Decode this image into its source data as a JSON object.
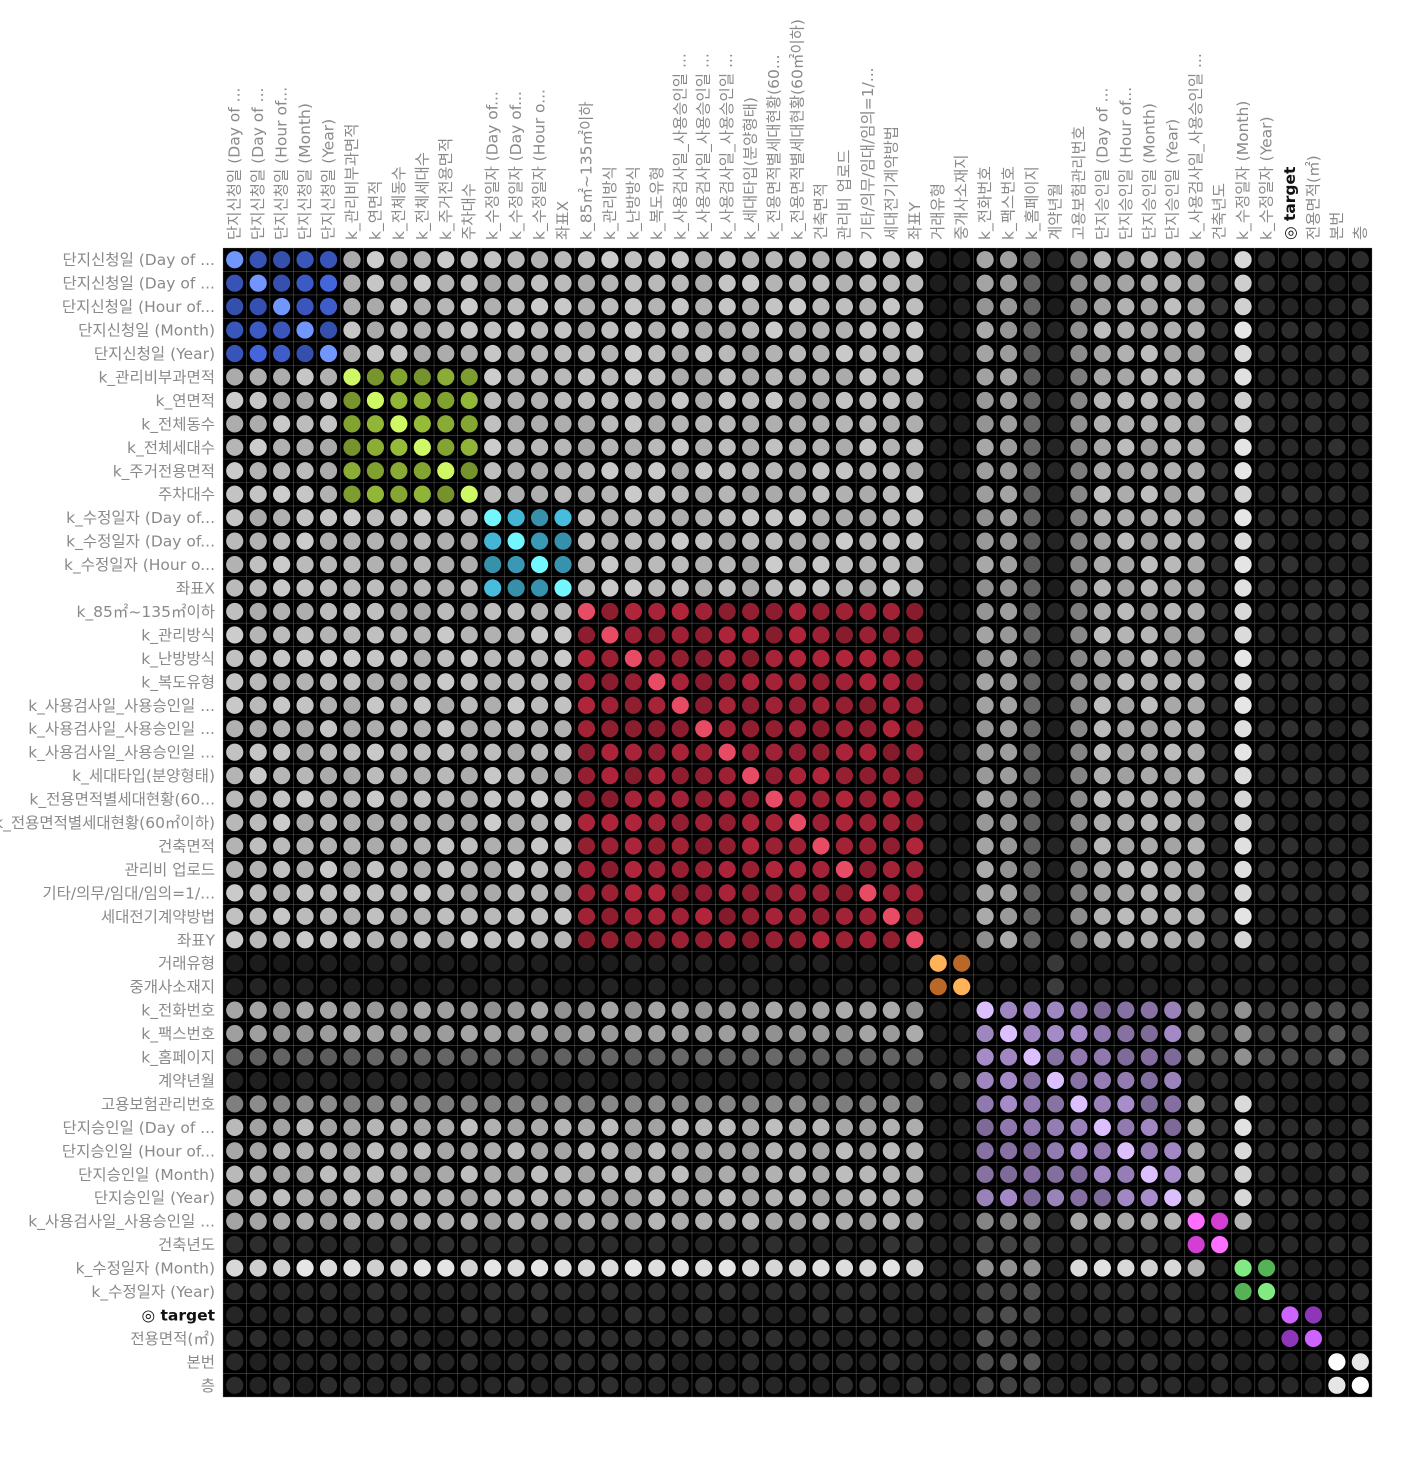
{
  "chart_data": {
    "type": "heatmap",
    "title": "",
    "labels": [
      "단지신청일 (Day of ...",
      "단지신청일 (Day of ...",
      "단지신청일 (Hour of...",
      "단지신청일 (Month)",
      "단지신청일 (Year)",
      "k_관리비부과면적",
      "k_연면적",
      "k_전체동수",
      "k_전체세대수",
      "k_주거전용면적",
      "주차대수",
      "k_수정일자 (Day of...",
      "k_수정일자 (Day of...",
      "k_수정일자 (Hour o...",
      "좌표X",
      "k_85㎡~135㎡이하",
      "k_관리방식",
      "k_난방방식",
      "k_복도유형",
      "k_사용검사일_사용승인일 ...",
      "k_사용검사일_사용승인일 ...",
      "k_사용검사일_사용승인일 ...",
      "k_세대타입(분양형태)",
      "k_전용면적별세대현황(60...",
      "k_전용면적별세대현황(60㎡이하)",
      "건축면적",
      "관리비 업로드",
      "기타/의무/임대/임의=1/...",
      "세대전기계약방법",
      "좌표Y",
      "거래유형",
      "중개사소재지",
      "k_전화번호",
      "k_팩스번호",
      "k_홈페이지",
      "계약년월",
      "고용보험관리번호",
      "단지승인일 (Day of ...",
      "단지승인일 (Hour of...",
      "단지승인일 (Month)",
      "단지승인일 (Year)",
      "k_사용검사일_사용승인일 ...",
      "건축년도",
      "k_수정일자 (Month)",
      "k_수정일자 (Year)",
      "◎ target",
      "전용면적(㎡)",
      "본번",
      "층"
    ],
    "bold_label": "◎ target",
    "groups": [
      {
        "indices": [
          0,
          4
        ],
        "color": "#4161d4"
      },
      {
        "indices": [
          5,
          10
        ],
        "color": "#8fb236"
      },
      {
        "indices": [
          11,
          14
        ],
        "color": "#42b0cf"
      },
      {
        "indices": [
          15,
          29
        ],
        "color": "#a32236"
      },
      {
        "indices": [
          30,
          31
        ],
        "color": "#d4772c"
      },
      {
        "indices": [
          32,
          40
        ],
        "color": "#9a82bb"
      },
      {
        "indices": [
          41,
          42
        ],
        "color": "#d33fd3"
      },
      {
        "indices": [
          43,
          44
        ],
        "color": "#4fa64f"
      },
      {
        "indices": [
          45,
          46
        ],
        "color": "#8e36b8"
      },
      {
        "indices": [
          47,
          48
        ],
        "color": "#ffffff"
      }
    ],
    "value_scale": "absolute correlation (0 = black, 1 = bright)",
    "background": "#000000"
  }
}
